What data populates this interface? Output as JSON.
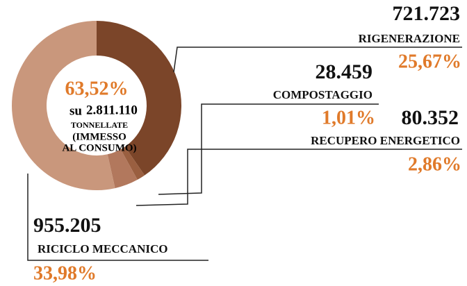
{
  "chart_data": {
    "type": "pie",
    "donut": true,
    "center_value": 63.52,
    "center_label": "63,52%",
    "center_prefix": "su",
    "total_label": "2.811.110",
    "center_lines": [
      "TONNELLATE",
      "(IMMESSO",
      "AL CONSUMO)"
    ],
    "categories": [
      "RIGENERAZIONE",
      "COMPOSTAGGIO",
      "RECUPERO ENERGETICO",
      "RICICLO MECCANICO"
    ],
    "values": [
      25.67,
      1.01,
      2.86,
      33.98
    ],
    "value_labels": [
      "25,67%",
      "1,01%",
      "2,86%",
      "33,98%"
    ],
    "tonnes": [
      721723,
      28459,
      80352,
      955205
    ],
    "tonnes_labels": [
      "721.723",
      "28.459",
      "80.352",
      "955.205"
    ],
    "colors": [
      "#7b4529",
      "#9a5f40",
      "#b2785d",
      "#c9977c"
    ],
    "label_color": "#e07a2a"
  }
}
